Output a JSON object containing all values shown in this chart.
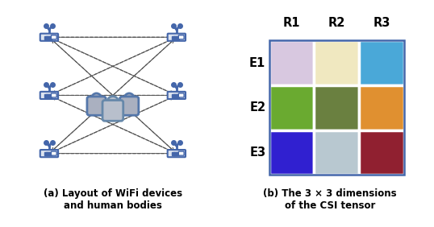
{
  "grid_colors": [
    [
      "#D8C8E0",
      "#F0E8C0",
      "#4AA8D8"
    ],
    [
      "#6AAA30",
      "#6A8040",
      "#E09030"
    ],
    [
      "#3020D0",
      "#B8C8D0",
      "#902030"
    ]
  ],
  "row_labels": [
    "E1",
    "E2",
    "E3"
  ],
  "col_labels": [
    "R1",
    "R2",
    "R3"
  ],
  "caption_a": "(a) Layout of WiFi devices\nand human bodies",
  "caption_b": "(b) The 3 × 3 dimensions\nof the CSI tensor",
  "bg_color": "#ffffff",
  "router_color": "#4466aa",
  "router_body_color": "#dde4f0",
  "arrow_color": "#555555",
  "person_body_color": "#aab0c0",
  "person_outline_color": "#5577aa",
  "person_center_color": "#6688aa",
  "grid_border_color": "#4466aa"
}
